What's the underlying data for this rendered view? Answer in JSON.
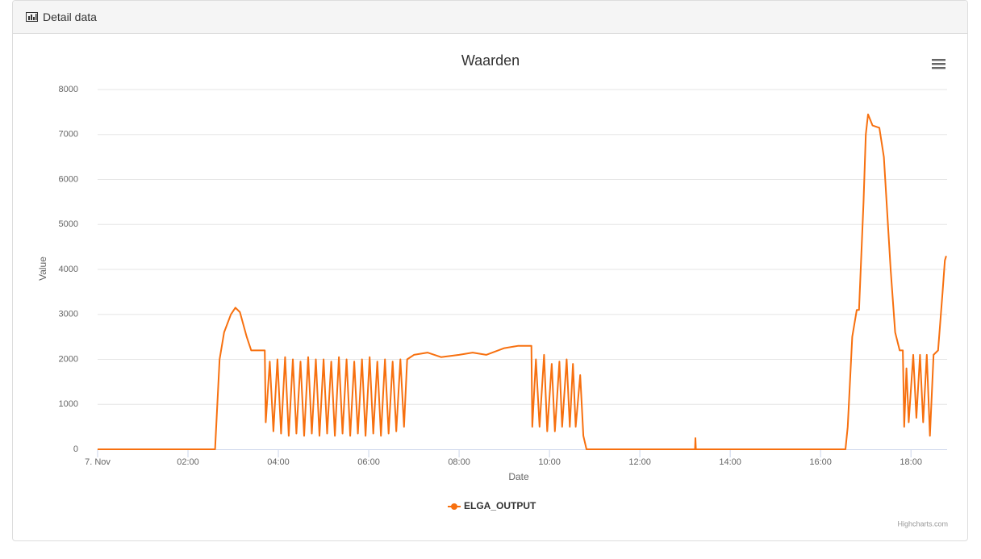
{
  "header": {
    "title": "Detail data"
  },
  "chart_data": {
    "type": "line",
    "title": "Waarden",
    "xlabel": "Date",
    "ylabel": "Value",
    "credits": "Highcharts.com",
    "x": [
      0,
      2.6,
      2.62,
      2.7,
      2.8,
      2.95,
      3.05,
      3.15,
      3.3,
      3.4,
      3.7,
      3.72,
      3.81,
      3.89,
      3.98,
      4.06,
      4.15,
      4.23,
      4.32,
      4.4,
      4.49,
      4.57,
      4.66,
      4.74,
      4.83,
      4.91,
      5.0,
      5.08,
      5.17,
      5.25,
      5.34,
      5.42,
      5.51,
      5.59,
      5.68,
      5.76,
      5.85,
      5.93,
      6.02,
      6.1,
      6.19,
      6.27,
      6.36,
      6.44,
      6.53,
      6.61,
      6.7,
      6.78,
      6.85,
      7.0,
      7.3,
      7.6,
      8.0,
      8.3,
      8.6,
      9.0,
      9.3,
      9.6,
      9.62,
      9.7,
      9.78,
      9.88,
      9.95,
      10.05,
      10.12,
      10.22,
      10.28,
      10.38,
      10.45,
      10.52,
      10.58,
      10.68,
      10.75,
      10.82,
      13.22,
      13.23,
      13.24,
      16.55,
      16.6,
      16.7,
      16.8,
      16.85,
      16.95,
      17.0,
      17.05,
      17.15,
      17.3,
      17.4,
      17.55,
      17.65,
      17.75,
      17.82,
      17.85,
      17.9,
      17.95,
      18.05,
      18.12,
      18.2,
      18.27,
      18.35,
      18.42,
      18.5,
      18.6,
      18.7,
      18.75,
      18.78
    ],
    "series": [
      {
        "name": "ELGA_OUTPUT",
        "color": "#f7700f",
        "values": [
          0,
          0,
          400,
          2000,
          2600,
          3000,
          3150,
          3050,
          2500,
          2200,
          2200,
          600,
          1950,
          400,
          2000,
          350,
          2050,
          300,
          2000,
          350,
          1950,
          300,
          2050,
          350,
          2000,
          300,
          2000,
          350,
          1950,
          300,
          2050,
          350,
          2000,
          300,
          1950,
          350,
          2000,
          300,
          2050,
          350,
          1950,
          300,
          2000,
          350,
          1950,
          400,
          2000,
          500,
          2000,
          2100,
          2150,
          2050,
          2100,
          2150,
          2100,
          2250,
          2300,
          2300,
          500,
          2000,
          500,
          2100,
          400,
          1900,
          400,
          1950,
          500,
          2000,
          500,
          1900,
          500,
          1650,
          300,
          0,
          0,
          250,
          0,
          0,
          500,
          2500,
          3100,
          3100,
          5500,
          7000,
          7450,
          7200,
          7150,
          6500,
          4000,
          2600,
          2200,
          2200,
          500,
          1800,
          600,
          2100,
          700,
          2100,
          600,
          2100,
          300,
          2100,
          2200,
          3500,
          4200,
          4300
        ]
      }
    ],
    "xlim": [
      0,
      18.8
    ],
    "xticks": [
      {
        "value": 0,
        "label": "7. Nov"
      },
      {
        "value": 2,
        "label": "02:00"
      },
      {
        "value": 4,
        "label": "04:00"
      },
      {
        "value": 6,
        "label": "06:00"
      },
      {
        "value": 8,
        "label": "08:00"
      },
      {
        "value": 10,
        "label": "10:00"
      },
      {
        "value": 12,
        "label": "12:00"
      },
      {
        "value": 14,
        "label": "14:00"
      },
      {
        "value": 16,
        "label": "16:00"
      },
      {
        "value": 18,
        "label": "18:00"
      }
    ],
    "ylim": [
      0,
      8000
    ],
    "yticks": [
      0,
      1000,
      2000,
      3000,
      4000,
      5000,
      6000,
      7000,
      8000
    ],
    "grid": true
  }
}
